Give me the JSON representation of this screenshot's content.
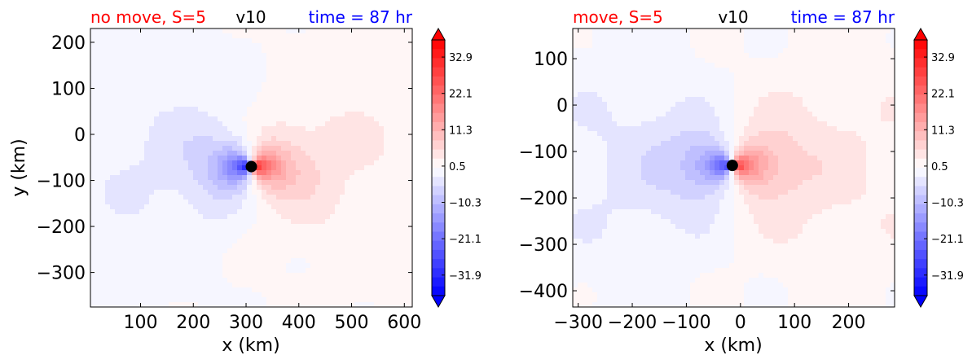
{
  "colors": {
    "title_left": "#ff0000",
    "title_center": "#000000",
    "title_right": "#0000ff",
    "marker": "#000000"
  },
  "chart_data": [
    {
      "type": "heatmap",
      "title_left": "no move, S=5",
      "title_center": "v10",
      "title_right": "time = 87 hr",
      "xlabel": "x (km)",
      "ylabel": "y (km)",
      "xlim": [
        5,
        615
      ],
      "ylim": [
        -375,
        230
      ],
      "xticks": [
        100,
        200,
        300,
        400,
        500,
        600
      ],
      "xtick_labels": [
        "100",
        "200",
        "300",
        "400",
        "500",
        "600"
      ],
      "yticks": [
        200,
        100,
        0,
        -100,
        -200,
        -300
      ],
      "ytick_labels": [
        "200",
        "100",
        "0",
        "−100",
        "−200",
        "−300"
      ],
      "center_marker": {
        "x": 310,
        "y": -70
      },
      "field": {
        "cx": 310,
        "cy": -70,
        "core_max": 38,
        "outer_scale": 8,
        "decay_inner": 35,
        "decay_outer": 200
      },
      "colorbar": {
        "range": [
          -38,
          38
        ],
        "tick_values": [
          32.9,
          22.1,
          11.3,
          0.5,
          -10.3,
          -21.1,
          -31.9
        ],
        "tick_labels": [
          "32.9",
          "22.1",
          "11.3",
          "0.5",
          "−10.3",
          "−21.1",
          "−31.9"
        ],
        "extend": "both"
      }
    },
    {
      "type": "heatmap",
      "title_left": "move, S=5",
      "title_center": "v10",
      "title_right": "time = 87 hr",
      "xlabel": "x (km)",
      "ylabel": "",
      "xlim": [
        -310,
        285
      ],
      "ylim": [
        -435,
        165
      ],
      "xticks": [
        -300,
        -200,
        -100,
        0,
        100,
        200
      ],
      "xtick_labels": [
        "−300",
        "−200",
        "−100",
        "0",
        "100",
        "200"
      ],
      "yticks": [
        100,
        0,
        -100,
        -200,
        -300,
        -400
      ],
      "ytick_labels": [
        "100",
        "0",
        "−100",
        "−200",
        "−300",
        "−400"
      ],
      "center_marker": {
        "x": -15,
        "y": -130
      },
      "field": {
        "cx": -15,
        "cy": -130,
        "core_max": 30,
        "outer_scale": 9,
        "decay_inner": 40,
        "decay_outer": 210
      },
      "colorbar": {
        "range": [
          -38,
          38
        ],
        "tick_values": [
          32.9,
          22.1,
          11.3,
          0.5,
          -10.3,
          -21.1,
          -31.9
        ],
        "tick_labels": [
          "32.9",
          "22.1",
          "11.3",
          "0.5",
          "−10.3",
          "−21.1",
          "−31.9"
        ],
        "extend": "both"
      }
    }
  ]
}
